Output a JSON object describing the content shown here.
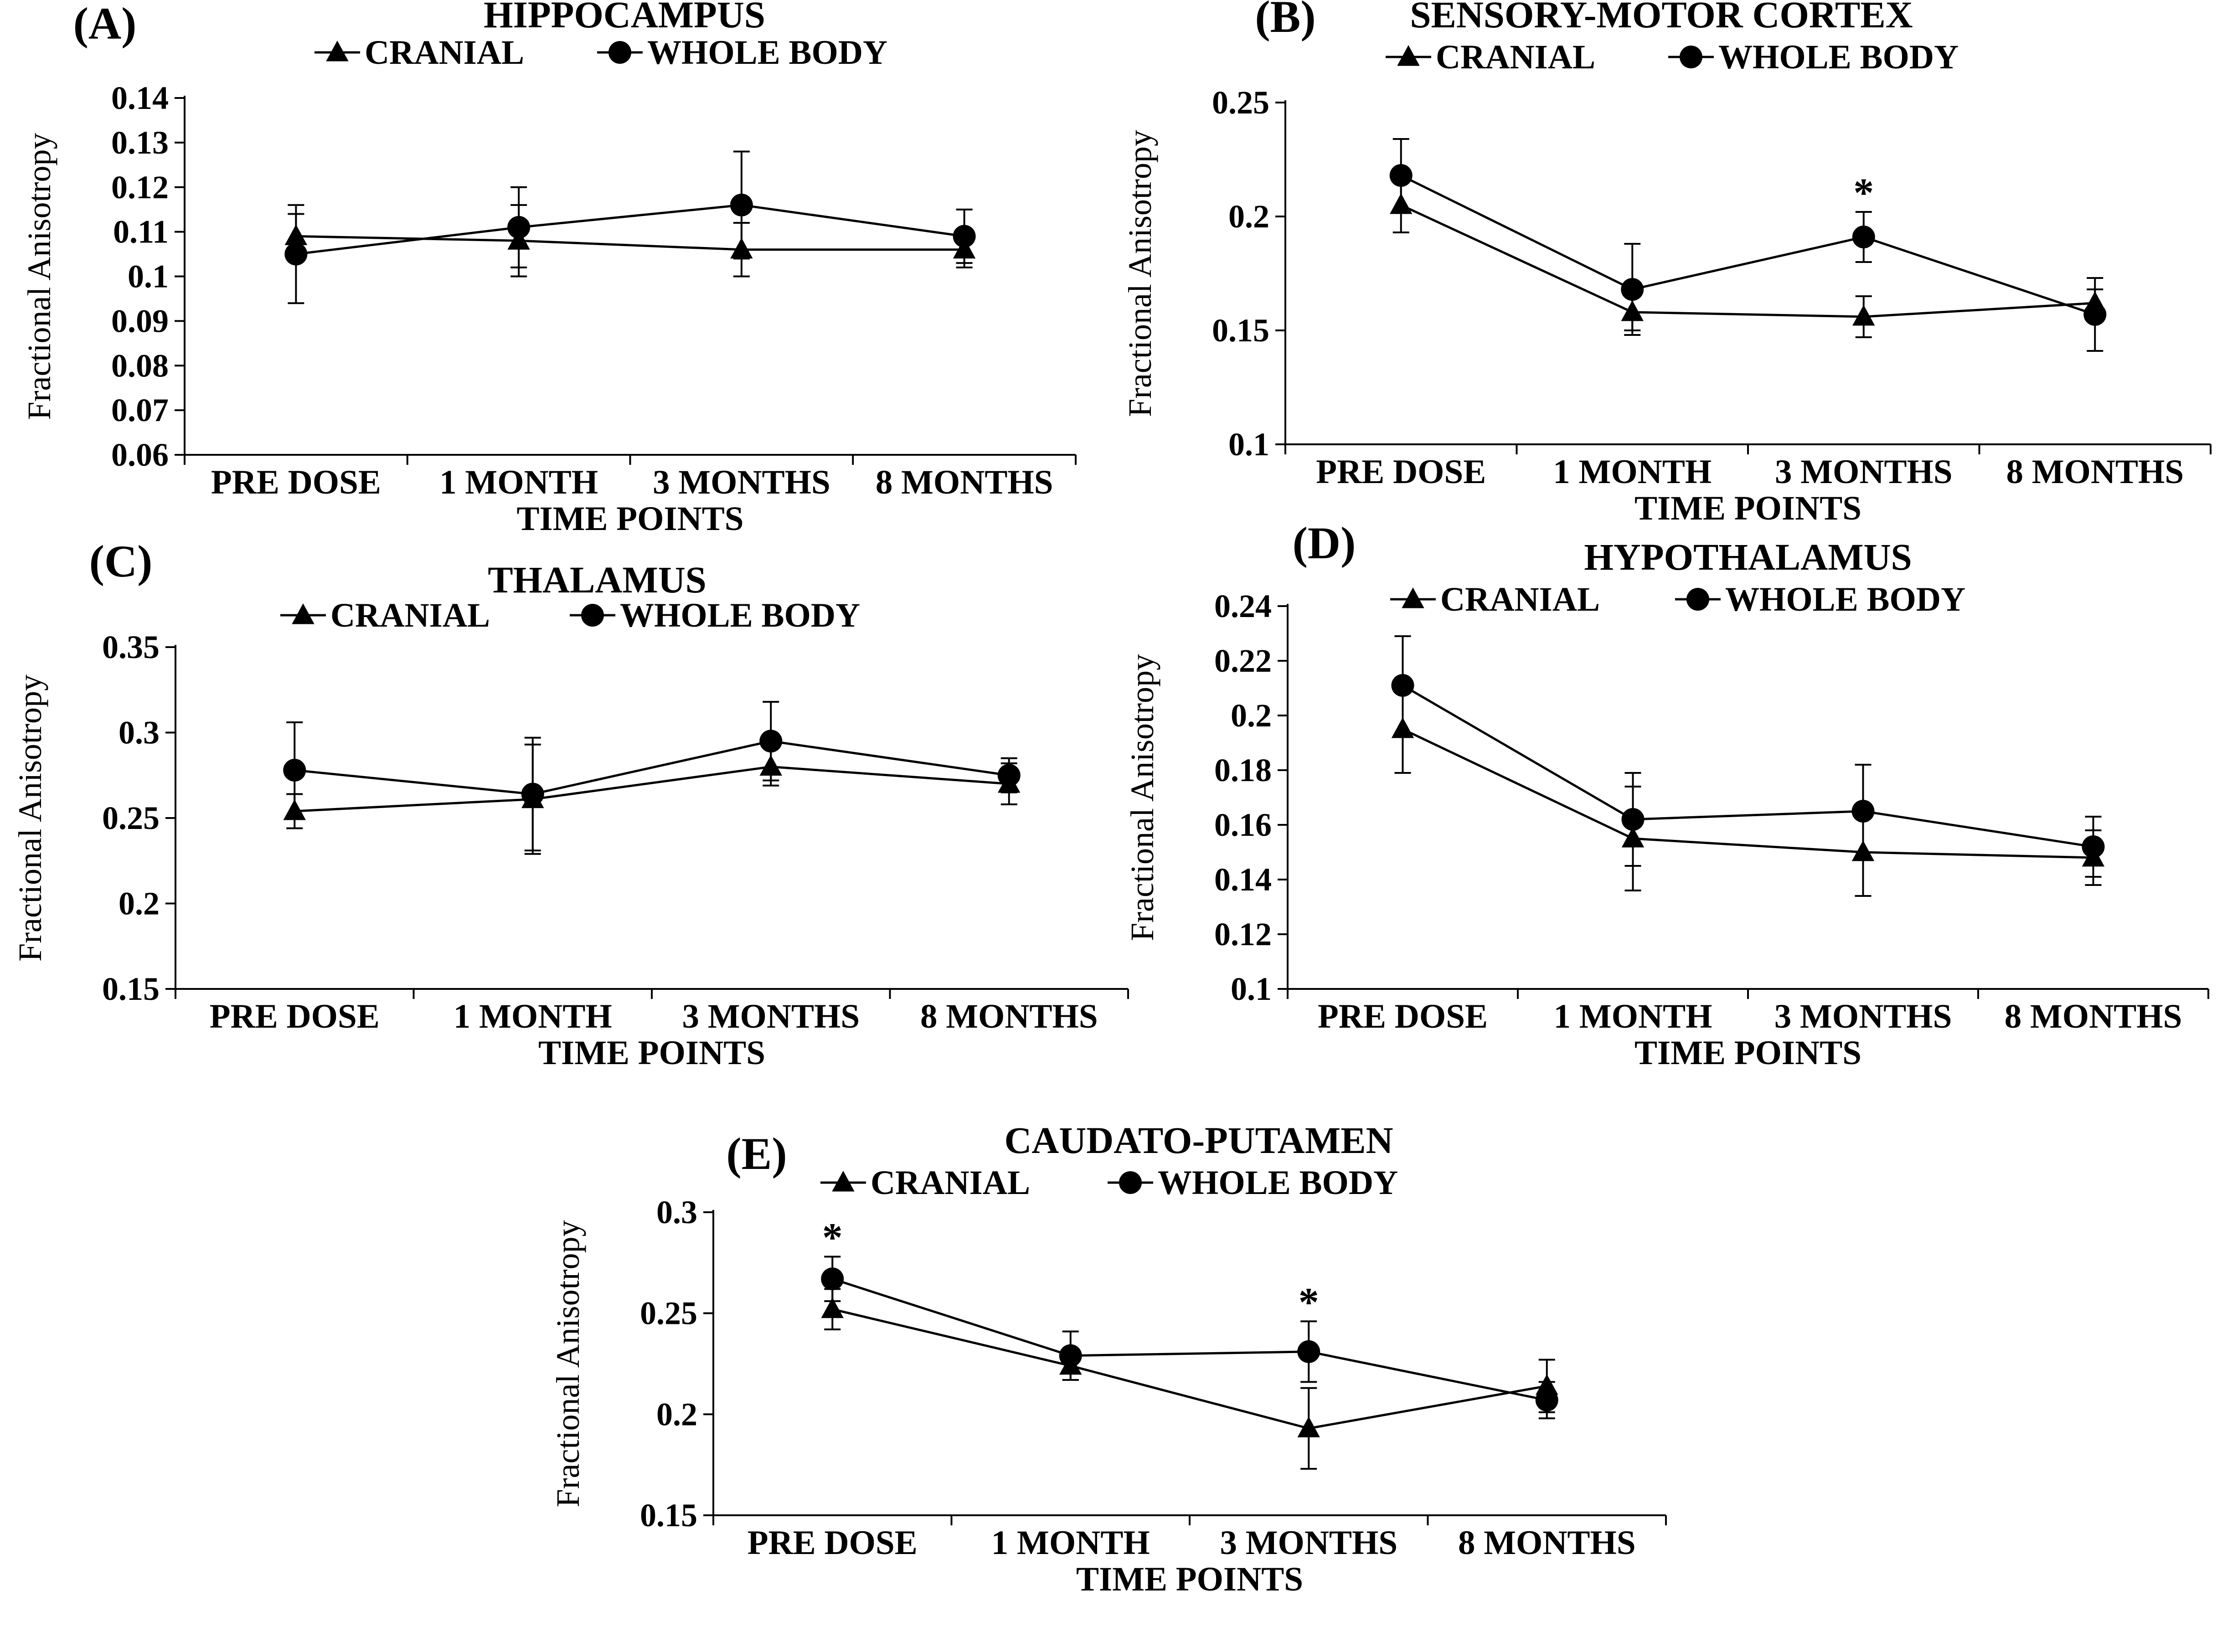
{
  "chart_data": [
    {
      "panel": "(A)",
      "type": "line",
      "title": "HIPPOCAMPUS",
      "xlabel": "TIME POINTS",
      "ylabel": "Fractional Anisotropy",
      "categories": [
        "PRE DOSE",
        "1 MONTH",
        "3 MONTHS",
        "8 MONTHS"
      ],
      "ylim": [
        0.06,
        0.14
      ],
      "yticks": [
        0.06,
        0.07,
        0.08,
        0.09,
        0.1,
        0.11,
        0.12,
        0.13,
        0.14
      ],
      "ytick_labels": [
        "0.06",
        "0.07",
        "0.08",
        "0.09",
        "0.1",
        "0.11",
        "0.12",
        "0.13",
        "0.14"
      ],
      "series": [
        {
          "name": "CRANIAL",
          "marker": "triangle",
          "values": [
            0.109,
            0.108,
            0.106,
            0.106
          ],
          "errors": [
            0.005,
            0.008,
            0.006,
            0.004
          ]
        },
        {
          "name": "WHOLE BODY",
          "marker": "circle",
          "values": [
            0.105,
            0.111,
            0.116,
            0.109
          ],
          "errors": [
            0.011,
            0.009,
            0.012,
            0.006
          ]
        }
      ],
      "significance": []
    },
    {
      "panel": "(B)",
      "type": "line",
      "title": "SENSORY-MOTOR CORTEX",
      "xlabel": "TIME POINTS",
      "ylabel": "Fractional Anisotropy",
      "categories": [
        "PRE DOSE",
        "1 MONTH",
        "3 MONTHS",
        "8 MONTHS"
      ],
      "ylim": [
        0.1,
        0.25
      ],
      "yticks": [
        0.1,
        0.15,
        0.2,
        0.25
      ],
      "ytick_labels": [
        "0.1",
        "0.15",
        "0.2",
        "0.25"
      ],
      "series": [
        {
          "name": "CRANIAL",
          "marker": "triangle",
          "values": [
            0.205,
            0.158,
            0.156,
            0.162
          ],
          "errors": [
            0.012,
            0.008,
            0.009,
            0.006
          ]
        },
        {
          "name": "WHOLE BODY",
          "marker": "circle",
          "values": [
            0.218,
            0.168,
            0.191,
            0.157
          ],
          "errors": [
            0.016,
            0.02,
            0.011,
            0.016
          ]
        }
      ],
      "significance": [
        {
          "index": 2,
          "label": "*"
        }
      ]
    },
    {
      "panel": "(C)",
      "type": "line",
      "title": "THALAMUS",
      "xlabel": "TIME POINTS",
      "ylabel": "Fractional Anisotropy",
      "categories": [
        "PRE DOSE",
        "1 MONTH",
        "3 MONTHS",
        "8 MONTHS"
      ],
      "ylim": [
        0.15,
        0.35
      ],
      "yticks": [
        0.15,
        0.2,
        0.25,
        0.3,
        0.35
      ],
      "ytick_labels": [
        "0.15",
        "0.2",
        "0.25",
        "0.3",
        "0.35"
      ],
      "series": [
        {
          "name": "CRANIAL",
          "marker": "triangle",
          "values": [
            0.254,
            0.261,
            0.28,
            0.27
          ],
          "errors": [
            0.01,
            0.032,
            0.011,
            0.012
          ]
        },
        {
          "name": "WHOLE BODY",
          "marker": "circle",
          "values": [
            0.278,
            0.264,
            0.295,
            0.275
          ],
          "errors": [
            0.028,
            0.033,
            0.023,
            0.01
          ]
        }
      ],
      "significance": []
    },
    {
      "panel": "(D)",
      "type": "line",
      "title": "HYPOTHALAMUS",
      "xlabel": "TIME POINTS",
      "ylabel": "Fractional Anisotropy",
      "categories": [
        "PRE DOSE",
        "1 MONTH",
        "3 MONTHS",
        "8 MONTHS"
      ],
      "ylim": [
        0.1,
        0.24
      ],
      "yticks": [
        0.1,
        0.12,
        0.14,
        0.16,
        0.18,
        0.2,
        0.22,
        0.24
      ],
      "ytick_labels": [
        "0.1",
        "0.12",
        "0.14",
        "0.16",
        "0.18",
        "0.2",
        "0.22",
        "0.24"
      ],
      "series": [
        {
          "name": "CRANIAL",
          "marker": "triangle",
          "values": [
            0.195,
            0.155,
            0.15,
            0.148
          ],
          "errors": [
            0.016,
            0.019,
            0.016,
            0.01
          ]
        },
        {
          "name": "WHOLE BODY",
          "marker": "circle",
          "values": [
            0.211,
            0.162,
            0.165,
            0.152
          ],
          "errors": [
            0.018,
            0.017,
            0.017,
            0.011
          ]
        }
      ],
      "significance": []
    },
    {
      "panel": "(E)",
      "type": "line",
      "title": "CAUDATO-PUTAMEN",
      "xlabel": "TIME POINTS",
      "ylabel": "Fractional Anisotropy",
      "categories": [
        "PRE DOSE",
        "1 MONTH",
        "3 MONTHS",
        "8 MONTHS"
      ],
      "ylim": [
        0.15,
        0.3
      ],
      "yticks": [
        0.15,
        0.2,
        0.25,
        0.3
      ],
      "ytick_labels": [
        "0.15",
        "0.2",
        "0.25",
        "0.3"
      ],
      "series": [
        {
          "name": "CRANIAL",
          "marker": "triangle",
          "values": [
            0.252,
            0.224,
            0.193,
            0.214
          ],
          "errors": [
            0.01,
            0.007,
            0.02,
            0.013
          ]
        },
        {
          "name": "WHOLE BODY",
          "marker": "circle",
          "values": [
            0.267,
            0.229,
            0.231,
            0.207
          ],
          "errors": [
            0.011,
            0.012,
            0.015,
            0.009
          ]
        }
      ],
      "significance": [
        {
          "index": 0,
          "label": "*"
        },
        {
          "index": 2,
          "label": "*"
        }
      ]
    }
  ]
}
